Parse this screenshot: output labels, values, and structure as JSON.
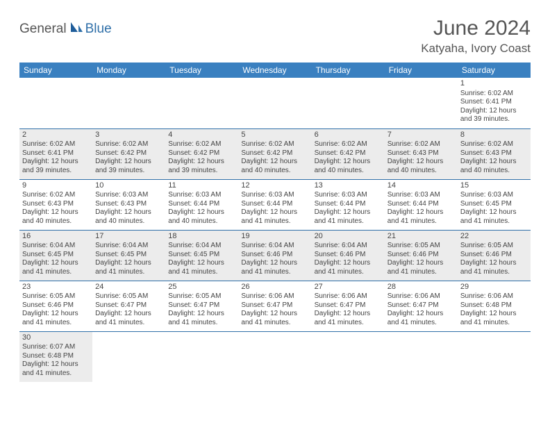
{
  "logo": {
    "text1": "General",
    "text2": "Blue"
  },
  "title": "June 2024",
  "location": "Katyaha, Ivory Coast",
  "colors": {
    "header_bg": "#3a80c0",
    "header_text": "#ffffff",
    "row_alt_bg": "#ececec",
    "rule": "#2f6fa8",
    "logo_accent": "#2f6fa8"
  },
  "day_headers": [
    "Sunday",
    "Monday",
    "Tuesday",
    "Wednesday",
    "Thursday",
    "Friday",
    "Saturday"
  ],
  "weeks": [
    [
      null,
      null,
      null,
      null,
      null,
      null,
      {
        "n": "1",
        "sr": "Sunrise: 6:02 AM",
        "ss": "Sunset: 6:41 PM",
        "d1": "Daylight: 12 hours",
        "d2": "and 39 minutes."
      }
    ],
    [
      {
        "n": "2",
        "sr": "Sunrise: 6:02 AM",
        "ss": "Sunset: 6:41 PM",
        "d1": "Daylight: 12 hours",
        "d2": "and 39 minutes."
      },
      {
        "n": "3",
        "sr": "Sunrise: 6:02 AM",
        "ss": "Sunset: 6:42 PM",
        "d1": "Daylight: 12 hours",
        "d2": "and 39 minutes."
      },
      {
        "n": "4",
        "sr": "Sunrise: 6:02 AM",
        "ss": "Sunset: 6:42 PM",
        "d1": "Daylight: 12 hours",
        "d2": "and 39 minutes."
      },
      {
        "n": "5",
        "sr": "Sunrise: 6:02 AM",
        "ss": "Sunset: 6:42 PM",
        "d1": "Daylight: 12 hours",
        "d2": "and 40 minutes."
      },
      {
        "n": "6",
        "sr": "Sunrise: 6:02 AM",
        "ss": "Sunset: 6:42 PM",
        "d1": "Daylight: 12 hours",
        "d2": "and 40 minutes."
      },
      {
        "n": "7",
        "sr": "Sunrise: 6:02 AM",
        "ss": "Sunset: 6:43 PM",
        "d1": "Daylight: 12 hours",
        "d2": "and 40 minutes."
      },
      {
        "n": "8",
        "sr": "Sunrise: 6:02 AM",
        "ss": "Sunset: 6:43 PM",
        "d1": "Daylight: 12 hours",
        "d2": "and 40 minutes."
      }
    ],
    [
      {
        "n": "9",
        "sr": "Sunrise: 6:02 AM",
        "ss": "Sunset: 6:43 PM",
        "d1": "Daylight: 12 hours",
        "d2": "and 40 minutes."
      },
      {
        "n": "10",
        "sr": "Sunrise: 6:03 AM",
        "ss": "Sunset: 6:43 PM",
        "d1": "Daylight: 12 hours",
        "d2": "and 40 minutes."
      },
      {
        "n": "11",
        "sr": "Sunrise: 6:03 AM",
        "ss": "Sunset: 6:44 PM",
        "d1": "Daylight: 12 hours",
        "d2": "and 40 minutes."
      },
      {
        "n": "12",
        "sr": "Sunrise: 6:03 AM",
        "ss": "Sunset: 6:44 PM",
        "d1": "Daylight: 12 hours",
        "d2": "and 41 minutes."
      },
      {
        "n": "13",
        "sr": "Sunrise: 6:03 AM",
        "ss": "Sunset: 6:44 PM",
        "d1": "Daylight: 12 hours",
        "d2": "and 41 minutes."
      },
      {
        "n": "14",
        "sr": "Sunrise: 6:03 AM",
        "ss": "Sunset: 6:44 PM",
        "d1": "Daylight: 12 hours",
        "d2": "and 41 minutes."
      },
      {
        "n": "15",
        "sr": "Sunrise: 6:03 AM",
        "ss": "Sunset: 6:45 PM",
        "d1": "Daylight: 12 hours",
        "d2": "and 41 minutes."
      }
    ],
    [
      {
        "n": "16",
        "sr": "Sunrise: 6:04 AM",
        "ss": "Sunset: 6:45 PM",
        "d1": "Daylight: 12 hours",
        "d2": "and 41 minutes."
      },
      {
        "n": "17",
        "sr": "Sunrise: 6:04 AM",
        "ss": "Sunset: 6:45 PM",
        "d1": "Daylight: 12 hours",
        "d2": "and 41 minutes."
      },
      {
        "n": "18",
        "sr": "Sunrise: 6:04 AM",
        "ss": "Sunset: 6:45 PM",
        "d1": "Daylight: 12 hours",
        "d2": "and 41 minutes."
      },
      {
        "n": "19",
        "sr": "Sunrise: 6:04 AM",
        "ss": "Sunset: 6:46 PM",
        "d1": "Daylight: 12 hours",
        "d2": "and 41 minutes."
      },
      {
        "n": "20",
        "sr": "Sunrise: 6:04 AM",
        "ss": "Sunset: 6:46 PM",
        "d1": "Daylight: 12 hours",
        "d2": "and 41 minutes."
      },
      {
        "n": "21",
        "sr": "Sunrise: 6:05 AM",
        "ss": "Sunset: 6:46 PM",
        "d1": "Daylight: 12 hours",
        "d2": "and 41 minutes."
      },
      {
        "n": "22",
        "sr": "Sunrise: 6:05 AM",
        "ss": "Sunset: 6:46 PM",
        "d1": "Daylight: 12 hours",
        "d2": "and 41 minutes."
      }
    ],
    [
      {
        "n": "23",
        "sr": "Sunrise: 6:05 AM",
        "ss": "Sunset: 6:46 PM",
        "d1": "Daylight: 12 hours",
        "d2": "and 41 minutes."
      },
      {
        "n": "24",
        "sr": "Sunrise: 6:05 AM",
        "ss": "Sunset: 6:47 PM",
        "d1": "Daylight: 12 hours",
        "d2": "and 41 minutes."
      },
      {
        "n": "25",
        "sr": "Sunrise: 6:05 AM",
        "ss": "Sunset: 6:47 PM",
        "d1": "Daylight: 12 hours",
        "d2": "and 41 minutes."
      },
      {
        "n": "26",
        "sr": "Sunrise: 6:06 AM",
        "ss": "Sunset: 6:47 PM",
        "d1": "Daylight: 12 hours",
        "d2": "and 41 minutes."
      },
      {
        "n": "27",
        "sr": "Sunrise: 6:06 AM",
        "ss": "Sunset: 6:47 PM",
        "d1": "Daylight: 12 hours",
        "d2": "and 41 minutes."
      },
      {
        "n": "28",
        "sr": "Sunrise: 6:06 AM",
        "ss": "Sunset: 6:47 PM",
        "d1": "Daylight: 12 hours",
        "d2": "and 41 minutes."
      },
      {
        "n": "29",
        "sr": "Sunrise: 6:06 AM",
        "ss": "Sunset: 6:48 PM",
        "d1": "Daylight: 12 hours",
        "d2": "and 41 minutes."
      }
    ],
    [
      {
        "n": "30",
        "sr": "Sunrise: 6:07 AM",
        "ss": "Sunset: 6:48 PM",
        "d1": "Daylight: 12 hours",
        "d2": "and 41 minutes."
      },
      null,
      null,
      null,
      null,
      null,
      null
    ]
  ]
}
